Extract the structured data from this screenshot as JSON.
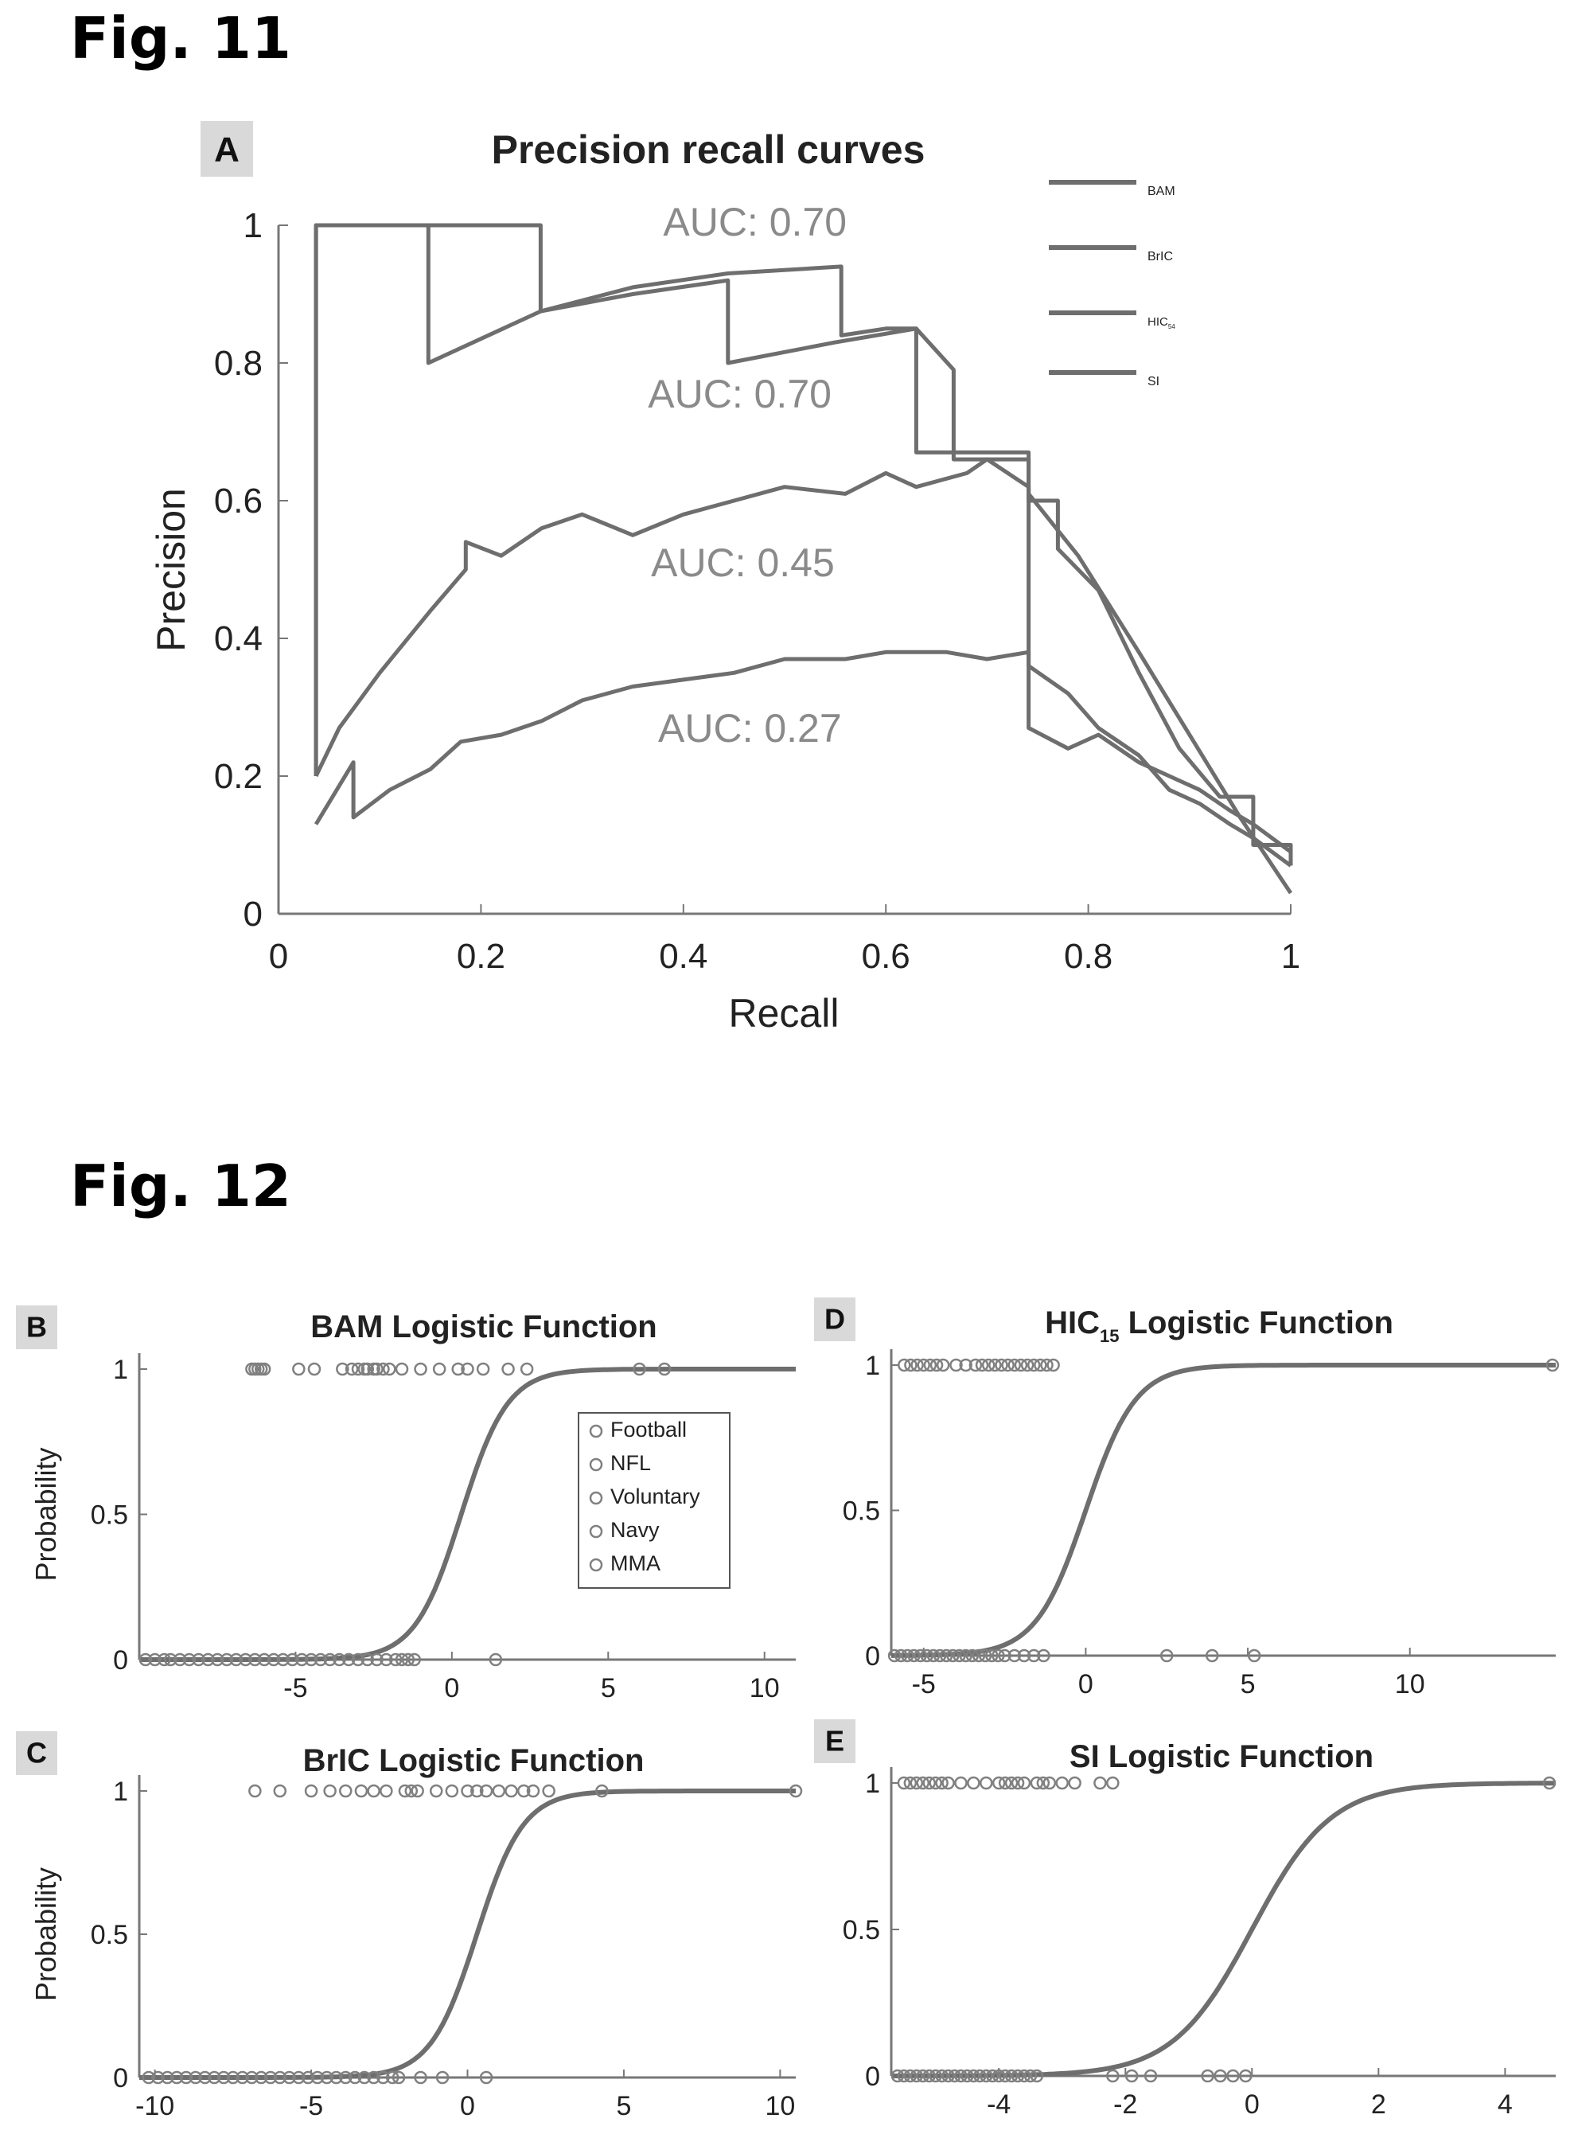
{
  "figures": {
    "fig11_label": "Fig. 11",
    "fig12_label": "Fig. 12"
  },
  "colors": {
    "axis": "#777777",
    "text": "#222222",
    "curve": "#6e6e6e",
    "label_gray": "#8a8a8a",
    "panel_letter_bg": "#d9d9d9"
  },
  "chart_data": [
    {
      "id": "A",
      "type": "line",
      "panel_letter": "A",
      "title": "Precision recall curves",
      "xlabel": "Recall",
      "ylabel": "Precision",
      "xlim": [
        0,
        1
      ],
      "ylim": [
        0,
        1
      ],
      "xticks": [
        "0",
        "0.2",
        "0.4",
        "0.6",
        "0.8",
        "1"
      ],
      "yticks": [
        "0",
        "0.2",
        "0.4",
        "0.6",
        "0.8",
        "1"
      ],
      "grid": false,
      "legend_position": "top-right",
      "legend": [
        {
          "label": "BAM",
          "sub": ""
        },
        {
          "label": "BrIC",
          "sub": ""
        },
        {
          "label": "HIC",
          "sub": "15"
        },
        {
          "label": "SI",
          "sub": ""
        }
      ],
      "annotations": [
        {
          "text": "AUC: 0.70",
          "x": 0.38,
          "y": 0.985
        },
        {
          "text": "AUC: 0.70",
          "x": 0.365,
          "y": 0.735
        },
        {
          "text": "AUC: 0.45",
          "x": 0.368,
          "y": 0.49
        },
        {
          "text": "AUC: 0.27",
          "x": 0.375,
          "y": 0.25
        }
      ],
      "series": [
        {
          "values": [
            [
              0.037,
              0.2
            ],
            [
              0.037,
              1.0
            ],
            [
              0.259,
              1.0
            ],
            [
              0.259,
              0.875
            ],
            [
              0.35,
              0.9
            ],
            [
              0.444,
              0.92
            ],
            [
              0.444,
              0.8
            ],
            [
              0.55,
              0.83
            ],
            [
              0.63,
              0.85
            ],
            [
              0.63,
              0.67
            ],
            [
              0.7,
              0.67
            ],
            [
              0.741,
              0.67
            ],
            [
              0.741,
              0.61
            ],
            [
              0.79,
              0.52
            ],
            [
              0.85,
              0.38
            ],
            [
              0.9,
              0.26
            ],
            [
              0.95,
              0.14
            ],
            [
              1.0,
              0.03
            ]
          ]
        },
        {
          "values": [
            [
              0.037,
              0.2
            ],
            [
              0.037,
              1.0
            ],
            [
              0.148,
              1.0
            ],
            [
              0.148,
              0.8
            ],
            [
              0.259,
              0.875
            ],
            [
              0.35,
              0.91
            ],
            [
              0.444,
              0.93
            ],
            [
              0.556,
              0.94
            ],
            [
              0.556,
              0.84
            ],
            [
              0.6,
              0.85
            ],
            [
              0.63,
              0.85
            ],
            [
              0.667,
              0.79
            ],
            [
              0.667,
              0.66
            ],
            [
              0.741,
              0.66
            ],
            [
              0.741,
              0.6
            ],
            [
              0.77,
              0.6
            ],
            [
              0.77,
              0.53
            ],
            [
              0.81,
              0.47
            ],
            [
              0.85,
              0.35
            ],
            [
              0.89,
              0.24
            ],
            [
              0.93,
              0.17
            ],
            [
              0.963,
              0.17
            ],
            [
              0.963,
              0.1
            ],
            [
              1.0,
              0.1
            ],
            [
              1.0,
              0.07
            ]
          ]
        },
        {
          "values": [
            [
              0.037,
              0.2
            ],
            [
              0.06,
              0.27
            ],
            [
              0.1,
              0.35
            ],
            [
              0.15,
              0.44
            ],
            [
              0.185,
              0.5
            ],
            [
              0.185,
              0.54
            ],
            [
              0.22,
              0.52
            ],
            [
              0.26,
              0.56
            ],
            [
              0.3,
              0.58
            ],
            [
              0.35,
              0.55
            ],
            [
              0.4,
              0.58
            ],
            [
              0.45,
              0.6
            ],
            [
              0.5,
              0.62
            ],
            [
              0.56,
              0.61
            ],
            [
              0.6,
              0.64
            ],
            [
              0.63,
              0.62
            ],
            [
              0.68,
              0.64
            ],
            [
              0.7,
              0.66
            ],
            [
              0.741,
              0.62
            ],
            [
              0.741,
              0.27
            ],
            [
              0.78,
              0.24
            ],
            [
              0.81,
              0.26
            ],
            [
              0.85,
              0.22
            ],
            [
              0.88,
              0.2
            ],
            [
              0.91,
              0.18
            ],
            [
              0.94,
              0.15
            ],
            [
              0.963,
              0.13
            ],
            [
              1.0,
              0.09
            ]
          ]
        },
        {
          "values": [
            [
              0.037,
              0.13
            ],
            [
              0.074,
              0.22
            ],
            [
              0.074,
              0.14
            ],
            [
              0.11,
              0.18
            ],
            [
              0.15,
              0.21
            ],
            [
              0.18,
              0.25
            ],
            [
              0.22,
              0.26
            ],
            [
              0.26,
              0.28
            ],
            [
              0.3,
              0.31
            ],
            [
              0.35,
              0.33
            ],
            [
              0.4,
              0.34
            ],
            [
              0.45,
              0.35
            ],
            [
              0.5,
              0.37
            ],
            [
              0.56,
              0.37
            ],
            [
              0.6,
              0.38
            ],
            [
              0.66,
              0.38
            ],
            [
              0.7,
              0.37
            ],
            [
              0.741,
              0.38
            ],
            [
              0.741,
              0.36
            ],
            [
              0.78,
              0.32
            ],
            [
              0.81,
              0.27
            ],
            [
              0.85,
              0.23
            ],
            [
              0.88,
              0.18
            ],
            [
              0.91,
              0.16
            ],
            [
              0.94,
              0.13
            ],
            [
              0.963,
              0.11
            ],
            [
              1.0,
              0.07
            ]
          ]
        }
      ]
    },
    {
      "id": "B",
      "type": "scatter",
      "panel_letter": "B",
      "title": "BAM Logistic Function",
      "ylabel": "Probability",
      "xlim": [
        -10,
        11
      ],
      "ylim": [
        0,
        1
      ],
      "xticks": [
        -5,
        0,
        5,
        10
      ],
      "yticks": [
        "0",
        "0.5",
        "1"
      ],
      "logistic_center": 0.3,
      "logistic_slope": 1.35,
      "legend_position": "center-right",
      "legend": [
        "Football",
        "NFL",
        "Voluntary",
        "Navy",
        "MMA"
      ],
      "points_y1": [
        -6.4,
        -6.3,
        -6.2,
        -6.1,
        -6.0,
        -4.9,
        -4.4,
        -3.5,
        -3.2,
        -3.0,
        -2.8,
        -2.7,
        -2.5,
        -2.4,
        -2.2,
        -2.0,
        -1.6,
        -1.0,
        -0.4,
        0.2,
        0.5,
        1.0,
        1.8,
        2.4,
        6.0,
        6.8
      ],
      "points_y0": [
        -9.8,
        -9.5,
        -9.2,
        -9.0,
        -8.7,
        -8.4,
        -8.1,
        -7.8,
        -7.5,
        -7.2,
        -6.9,
        -6.6,
        -6.3,
        -6.0,
        -5.7,
        -5.4,
        -5.1,
        -4.8,
        -4.5,
        -4.2,
        -3.9,
        -3.6,
        -3.3,
        -3.0,
        -2.7,
        -2.4,
        -2.1,
        -1.8,
        -1.6,
        -1.4,
        -1.2,
        1.4
      ]
    },
    {
      "id": "D",
      "type": "scatter",
      "panel_letter": "D",
      "title": "HIC",
      "title_sub": "15",
      "title_suffix": " Logistic Function",
      "xlim": [
        -6,
        14.5
      ],
      "ylim": [
        0,
        1
      ],
      "xticks": [
        -5,
        0,
        5,
        10
      ],
      "yticks": [
        "0",
        "0.5",
        "1"
      ],
      "logistic_center": 0.0,
      "logistic_slope": 1.3,
      "points_y1": [
        -5.6,
        -5.4,
        -5.2,
        -5.0,
        -4.8,
        -4.6,
        -4.4,
        -4.0,
        -3.7,
        -3.4,
        -3.2,
        -3.0,
        -2.8,
        -2.6,
        -2.4,
        -2.2,
        -2.0,
        -1.8,
        -1.6,
        -1.4,
        -1.2,
        -1.0,
        14.4
      ],
      "points_y0": [
        -5.9,
        -5.7,
        -5.5,
        -5.3,
        -5.1,
        -4.9,
        -4.7,
        -4.5,
        -4.3,
        -4.1,
        -3.9,
        -3.7,
        -3.5,
        -3.3,
        -3.1,
        -2.9,
        -2.7,
        -2.5,
        -2.2,
        -1.9,
        -1.6,
        -1.3,
        2.5,
        3.9,
        5.2
      ]
    },
    {
      "id": "C",
      "type": "scatter",
      "panel_letter": "C",
      "title": "BrIC Logistic Function",
      "ylabel": "Probability",
      "xlim": [
        -10.5,
        10.5
      ],
      "ylim": [
        0,
        1
      ],
      "xticks": [
        -10,
        -5,
        0,
        5,
        10
      ],
      "yticks": [
        "0",
        "0.5",
        "1"
      ],
      "logistic_center": 0.3,
      "logistic_slope": 1.35,
      "points_y1": [
        -6.8,
        -6.0,
        -5.0,
        -4.4,
        -3.9,
        -3.4,
        -3.0,
        -2.6,
        -2.0,
        -1.8,
        -1.6,
        -1.0,
        -0.5,
        0.0,
        0.3,
        0.6,
        1.0,
        1.4,
        1.8,
        2.1,
        2.6,
        4.3,
        10.5
      ],
      "points_y0": [
        -10.2,
        -9.9,
        -9.6,
        -9.3,
        -9.0,
        -8.7,
        -8.4,
        -8.1,
        -7.8,
        -7.5,
        -7.2,
        -6.9,
        -6.6,
        -6.3,
        -6.0,
        -5.7,
        -5.4,
        -5.1,
        -4.8,
        -4.5,
        -4.2,
        -3.9,
        -3.6,
        -3.3,
        -3.0,
        -2.7,
        -2.4,
        -2.2,
        -1.5,
        -0.8,
        0.6
      ]
    },
    {
      "id": "E",
      "type": "scatter",
      "panel_letter": "E",
      "title": "SI Logistic Function",
      "xlim": [
        -5.7,
        4.8
      ],
      "ylim": [
        0,
        1
      ],
      "xticks": [
        -4,
        -2,
        0,
        2,
        4
      ],
      "yticks": [
        "0",
        "0.5",
        "1"
      ],
      "logistic_center": 0.0,
      "logistic_slope": 1.6,
      "points_y1": [
        -5.5,
        -5.4,
        -5.3,
        -5.2,
        -5.1,
        -5.0,
        -4.9,
        -4.8,
        -4.6,
        -4.4,
        -4.2,
        -4.0,
        -3.9,
        -3.8,
        -3.7,
        -3.6,
        -3.4,
        -3.3,
        -3.2,
        -3.0,
        -2.8,
        -2.4,
        -2.2,
        4.7
      ],
      "points_y0": [
        -5.6,
        -5.5,
        -5.4,
        -5.3,
        -5.2,
        -5.1,
        -5.0,
        -4.9,
        -4.8,
        -4.7,
        -4.6,
        -4.5,
        -4.4,
        -4.3,
        -4.2,
        -4.1,
        -4.0,
        -3.9,
        -3.8,
        -3.7,
        -3.6,
        -3.5,
        -3.4,
        -2.2,
        -1.9,
        -1.6,
        -0.7,
        -0.5,
        -0.3,
        -0.1
      ]
    }
  ]
}
